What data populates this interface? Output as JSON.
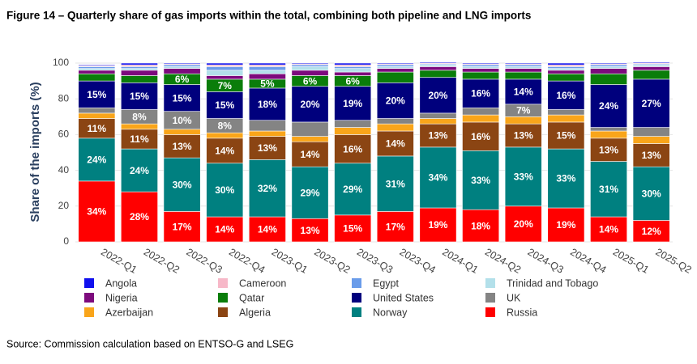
{
  "chart_data": {
    "type": "stacked_bar",
    "title": "Figure 14 – Quarterly share of gas imports within the total, combining both pipeline and LNG imports",
    "y_label": "Share of the imports (%)",
    "source": "Source: Commission calculation based on ENTSO-G and LSEG",
    "categories": [
      "2022-Q1",
      "2022-Q2",
      "2022-Q3",
      "2022-Q4",
      "2023-Q1",
      "2023-Q2",
      "2023-Q3",
      "2023-Q4",
      "2024-Q1",
      "2024-Q2",
      "2024-Q3",
      "2024-Q4",
      "2025-Q1",
      "2025-Q2"
    ],
    "ylim": [
      0,
      100
    ],
    "yticks": [
      0,
      20,
      40,
      60,
      80,
      100
    ],
    "grid": true,
    "series": [
      {
        "name": "Angola",
        "color": "#1010ee",
        "values": [
          0.5,
          1,
          0.5,
          1,
          1,
          0.5,
          1,
          0.5,
          0.5,
          0.5,
          0.5,
          1,
          0.5,
          0.5
        ]
      },
      {
        "name": "Cameroon",
        "color": "#f7b8c8",
        "values": [
          0.5,
          1,
          0.5,
          1,
          1,
          0.5,
          1,
          0.5,
          0.5,
          0.5,
          0.5,
          1,
          0.5,
          0.5
        ]
      },
      {
        "name": "Egypt",
        "color": "#6a9cea",
        "values": [
          1,
          1,
          1,
          2,
          2,
          1,
          1,
          1,
          0.5,
          1,
          1,
          1,
          1,
          0.5
        ]
      },
      {
        "name": "Trinidad and Tobago",
        "color": "#b3e0ea",
        "values": [
          1,
          1,
          1,
          3,
          2,
          2,
          2,
          1,
          1,
          1,
          1,
          1,
          1,
          1
        ]
      },
      {
        "name": "Nigeria",
        "color": "#7d0a7d",
        "values": [
          2,
          3,
          3,
          2,
          3,
          3,
          2,
          2,
          2,
          2,
          2,
          2,
          3,
          2
        ]
      },
      {
        "name": "Qatar",
        "color": "#0a7d0a",
        "values": [
          4,
          4,
          6,
          7,
          5,
          6,
          6,
          6,
          4,
          4,
          4,
          4,
          6,
          5
        ],
        "value_labels": [
          null,
          null,
          "6%",
          "7%",
          "5%",
          "6%",
          "6%",
          null,
          null,
          null,
          null,
          null,
          null,
          null
        ]
      },
      {
        "name": "United States",
        "color": "#00007d",
        "values": [
          15,
          15,
          15,
          15,
          18,
          20,
          19,
          20,
          20,
          16,
          14,
          16,
          24,
          27
        ],
        "value_labels": [
          "15%",
          "15%",
          "15%",
          "15%",
          "18%",
          "20%",
          "19%",
          "20%",
          "20%",
          "16%",
          "14%",
          "16%",
          "24%",
          "27%"
        ]
      },
      {
        "name": "UK",
        "color": "#848484",
        "values": [
          3,
          8,
          10,
          8,
          6,
          8,
          4,
          3,
          3,
          4,
          7,
          3,
          2,
          5
        ],
        "value_labels": [
          null,
          "8%",
          "10%",
          "8%",
          null,
          null,
          null,
          null,
          null,
          null,
          "7%",
          null,
          null,
          null
        ]
      },
      {
        "name": "Azerbaijan",
        "color": "#f9a51a",
        "values": [
          3,
          3,
          3,
          3,
          3,
          3,
          4,
          4,
          3,
          4,
          4,
          4,
          4,
          4
        ]
      },
      {
        "name": "Algeria",
        "color": "#8b4513",
        "values": [
          11,
          11,
          13,
          14,
          13,
          14,
          16,
          14,
          13,
          16,
          13,
          15,
          13,
          13
        ],
        "value_labels": [
          "11%",
          "11%",
          "13%",
          "14%",
          "13%",
          "14%",
          "16%",
          "14%",
          "13%",
          "16%",
          "13%",
          "15%",
          "13%",
          "13%"
        ]
      },
      {
        "name": "Norway",
        "color": "#008080",
        "values": [
          24,
          24,
          30,
          30,
          32,
          29,
          29,
          31,
          34,
          33,
          33,
          33,
          31,
          30
        ],
        "value_labels": [
          "24%",
          "24%",
          "30%",
          "30%",
          "32%",
          "29%",
          "29%",
          "31%",
          "34%",
          "33%",
          "33%",
          "33%",
          "31%",
          "30%"
        ]
      },
      {
        "name": "Russia",
        "color": "#ff0000",
        "values": [
          34,
          28,
          17,
          14,
          14,
          13,
          15,
          17,
          19,
          18,
          20,
          19,
          14,
          12
        ],
        "value_labels": [
          "34%",
          "28%",
          "17%",
          "14%",
          "14%",
          "13%",
          "15%",
          "17%",
          "19%",
          "18%",
          "20%",
          "19%",
          "14%",
          "12%"
        ]
      }
    ]
  }
}
